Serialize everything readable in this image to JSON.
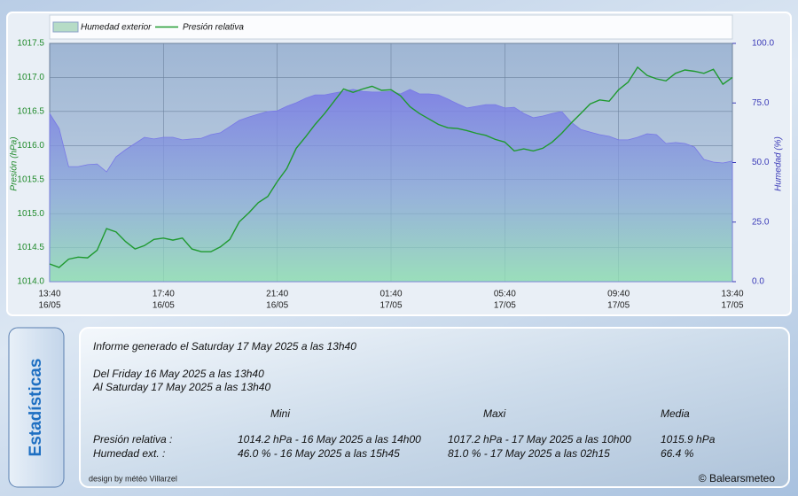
{
  "chart_data": {
    "type": "line",
    "categories": [
      "13:40",
      null,
      null,
      null,
      null,
      null,
      null,
      null,
      null,
      null,
      null,
      null,
      "17:40",
      null,
      null,
      null,
      null,
      null,
      null,
      null,
      null,
      null,
      null,
      null,
      "21:40",
      null,
      null,
      null,
      null,
      null,
      null,
      null,
      null,
      null,
      null,
      null,
      "01:40",
      null,
      null,
      null,
      null,
      null,
      null,
      null,
      null,
      null,
      null,
      null,
      "05:40",
      null,
      null,
      null,
      null,
      null,
      null,
      null,
      null,
      null,
      null,
      null,
      "09:40",
      null,
      null,
      null,
      null,
      null,
      null,
      null,
      null,
      null,
      null,
      null,
      "13:40"
    ],
    "category_dates": [
      "16/05",
      null,
      null,
      null,
      null,
      null,
      null,
      null,
      null,
      null,
      null,
      null,
      "16/05",
      null,
      null,
      null,
      null,
      null,
      null,
      null,
      null,
      null,
      null,
      null,
      "16/05",
      null,
      null,
      null,
      null,
      null,
      null,
      null,
      null,
      null,
      null,
      null,
      "17/05",
      null,
      null,
      null,
      null,
      null,
      null,
      null,
      null,
      null,
      null,
      null,
      "17/05",
      null,
      null,
      null,
      null,
      null,
      null,
      null,
      null,
      null,
      null,
      null,
      "17/05",
      null,
      null,
      null,
      null,
      null,
      null,
      null,
      null,
      null,
      null,
      null,
      "17/05"
    ],
    "series": [
      {
        "name": "Humedad exterior",
        "color": "#7878e6",
        "axis": "y2",
        "kind": "area",
        "values": [
          70.6,
          64.3,
          48.3,
          48.3,
          49.1,
          49.4,
          46.1,
          52.4,
          55.4,
          58.0,
          60.6,
          59.9,
          60.6,
          60.6,
          59.5,
          59.9,
          60.2,
          61.7,
          62.5,
          65.1,
          67.7,
          69.1,
          70.3,
          71.4,
          71.7,
          73.6,
          75.1,
          77.0,
          78.4,
          78.4,
          79.2,
          79.9,
          80.7,
          79.9,
          79.6,
          79.6,
          79.9,
          78.8,
          80.7,
          78.8,
          78.8,
          78.4,
          76.6,
          74.7,
          72.9,
          73.6,
          74.3,
          74.3,
          72.9,
          73.2,
          70.6,
          68.8,
          69.5,
          70.6,
          71.4,
          66.9,
          63.9,
          62.8,
          61.7,
          61.0,
          59.5,
          59.5,
          60.6,
          62.1,
          61.7,
          58.0,
          58.4,
          58.0,
          56.5,
          51.3,
          50.2,
          49.8,
          50.6
        ]
      },
      {
        "name": "Presión relativa",
        "color": "#1f9a2f",
        "axis": "y",
        "kind": "line",
        "values": [
          1014.26,
          1014.21,
          1014.33,
          1014.36,
          1014.35,
          1014.46,
          1014.78,
          1014.73,
          1014.59,
          1014.48,
          1014.53,
          1014.62,
          1014.64,
          1014.61,
          1014.64,
          1014.48,
          1014.44,
          1014.44,
          1014.51,
          1014.62,
          1014.88,
          1015.01,
          1015.16,
          1015.25,
          1015.47,
          1015.66,
          1015.96,
          1016.13,
          1016.31,
          1016.47,
          1016.65,
          1016.83,
          1016.78,
          1016.83,
          1016.87,
          1016.81,
          1016.82,
          1016.73,
          1016.57,
          1016.47,
          1016.39,
          1016.31,
          1016.26,
          1016.25,
          1016.22,
          1016.18,
          1016.15,
          1016.09,
          1016.05,
          1015.92,
          1015.95,
          1015.92,
          1015.96,
          1016.05,
          1016.18,
          1016.33,
          1016.47,
          1016.61,
          1016.67,
          1016.65,
          1016.82,
          1016.93,
          1017.15,
          1017.03,
          1016.98,
          1016.95,
          1017.06,
          1017.11,
          1017.09,
          1017.06,
          1017.12,
          1016.9,
          1017.0
        ]
      }
    ],
    "y_label": "Presión (hPa)",
    "y2_label": "Humedad (%)",
    "ylim": [
      1014.0,
      1017.5
    ],
    "yticks": [
      {
        "value": 1014,
        "label": "1014.0"
      },
      1014.5,
      {
        "value": 1015,
        "label": "1015.0"
      },
      1015.5,
      {
        "value": 1016,
        "label": "1016.0"
      },
      1016.5,
      {
        "value": 1017,
        "label": "1017.0"
      },
      1017.5
    ],
    "y2lim": [
      0,
      100
    ],
    "y2ticks": [
      {
        "value": 0,
        "label": "0.0"
      },
      {
        "value": 25,
        "label": "25.0"
      },
      {
        "value": 50,
        "label": "50.0"
      },
      {
        "value": 75,
        "label": "75.0"
      },
      {
        "value": 100,
        "label": "100.0"
      }
    ],
    "grid": true,
    "legend": "top-left"
  },
  "stats": {
    "tab_title": "Estadísticas",
    "report": "Informe generado el Saturday 17 May 2025 a las 13h40",
    "from": "Del Friday 16 May 2025 a las 13h40",
    "to": "Al Saturday 17 May 2025 a las 13h40",
    "headers": [
      "Mini",
      "Maxi",
      "Media"
    ],
    "rows": [
      [
        "Presión relativa :",
        "1014.2 hPa - 16 May 2025 a las 14h00",
        "1017.2 hPa - 17 May 2025 a las 10h00",
        "1015.9 hPa"
      ],
      [
        "Humedad ext. :",
        "46.0 % - 16 May 2025 a las 15h45",
        "81.0 % - 17 May 2025 a las 02h15",
        "66.4 %"
      ]
    ],
    "design": "design by météo Villarzel",
    "copyright": "© Balearsmeteo"
  }
}
